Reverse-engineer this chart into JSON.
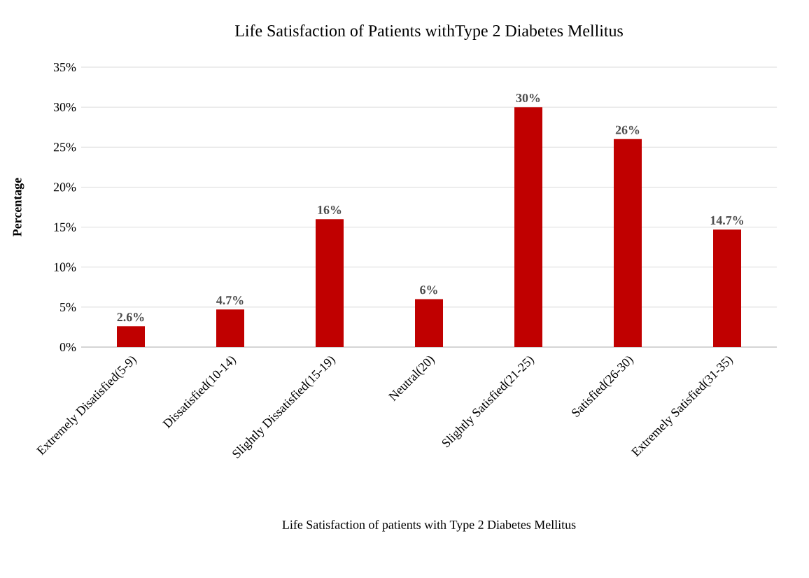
{
  "chart_data": {
    "type": "bar",
    "title": "Life Satisfaction of Patients withType 2 Diabetes Mellitus",
    "xlabel": "Life Satisfaction of patients with Type 2 Diabetes Mellitus",
    "ylabel": "Percentage",
    "categories": [
      "Extremely Disatisfied(5-9)",
      "Dissatisfied(10-14)",
      "Slightly Dissatisfied(15-19)",
      "Neutral(20)",
      "Slightly Satisfied(21-25)",
      "Satisfied(26-30)",
      "Extremely Satisfied(31-35)"
    ],
    "values": [
      2.6,
      4.7,
      16,
      6,
      30,
      26,
      14.7
    ],
    "value_labels": [
      "2.6%",
      "4.7%",
      "16%",
      "6%",
      "30%",
      "26%",
      "14.7%"
    ],
    "color": "#c00000",
    "ylim": [
      0,
      35
    ],
    "yticks": [
      {
        "value": 0,
        "label": "0%"
      },
      {
        "value": 5,
        "label": "5%"
      },
      {
        "value": 10,
        "label": "10%"
      },
      {
        "value": 15,
        "label": "15%"
      },
      {
        "value": 20,
        "label": "20%"
      },
      {
        "value": 25,
        "label": "25%"
      },
      {
        "value": 30,
        "label": "30%"
      },
      {
        "value": 35,
        "label": "35%"
      }
    ],
    "grid": "y"
  }
}
